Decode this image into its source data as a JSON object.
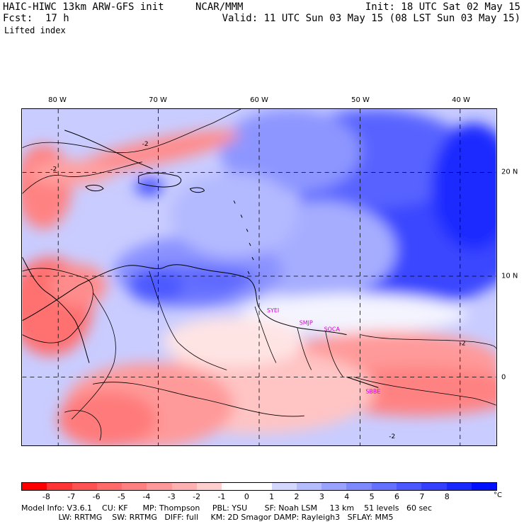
{
  "header": {
    "model": "HAIC-HIWC 13km ARW-GFS init",
    "center": "NCAR/MMM",
    "init": "Init: 18 UTC Sat 02 May 15",
    "fcst_label": "Fcst:",
    "fcst_value": "17 h",
    "valid": "Valid: 11 UTC Sun 03 May 15 (08 LST Sun 03 May 15)",
    "field": "Lifted index"
  },
  "map": {
    "longitude_labels": [
      "80 W",
      "70 W",
      "60 W",
      "50 W",
      "40 W"
    ],
    "latitude_labels": [
      "20 N",
      "10 N",
      "0"
    ],
    "city_labels": [
      "SYEI",
      "SMJP",
      "SOCA",
      "SBBE"
    ],
    "contour_labels": [
      "-2",
      "-2",
      "-2",
      "-2"
    ]
  },
  "colorbar": {
    "colors": [
      "#ff0000",
      "#ff3535",
      "#ff5252",
      "#ff6a6a",
      "#ff8080",
      "#ff9999",
      "#ffb0b0",
      "#ffcfcf",
      "#ffffff",
      "#ffffff",
      "#d4d8ff",
      "#b6bdff",
      "#9aa3ff",
      "#7e88ff",
      "#6470ff",
      "#4b57ff",
      "#3340ff",
      "#1828ff",
      "#0010ff"
    ],
    "labels": [
      "-8",
      "-7",
      "-6",
      "-5",
      "-4",
      "-3",
      "-2",
      "-1",
      "0",
      "1",
      "2",
      "3",
      "4",
      "5",
      "6",
      "7",
      "8"
    ],
    "unit": "°C"
  },
  "footer": {
    "line1": "Model Info: V3.6.1    CU: KF      MP: Thompson     PBL: YSU       SF: Noah LSM     13 km    51 levels   60 sec",
    "line2": "               LW: RRTMG    SW: RRTMG   DIFF: full     KM: 2D Smagor DAMP: Rayleigh3   SFLAY: MM5"
  }
}
